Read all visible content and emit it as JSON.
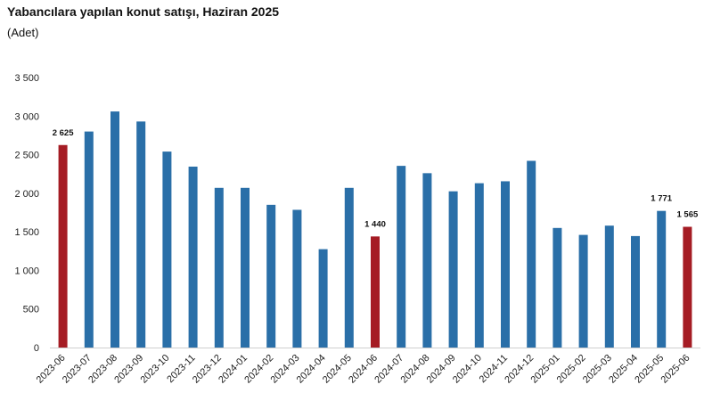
{
  "title": "Yabancılara yapılan konut satışı, Haziran 2025",
  "subtitle": "(Adet)",
  "colors": {
    "default_bar": "#2a6fa8",
    "highlight_bar": "#a51c24",
    "axis": "#cfcfcf"
  },
  "chart_data": {
    "type": "bar",
    "title": "Yabancılara yapılan konut satışı, Haziran 2025",
    "subtitle": "(Adet)",
    "xlabel": "",
    "ylabel": "",
    "ylim": [
      0,
      3500
    ],
    "yticks": [
      0,
      500,
      1000,
      1500,
      2000,
      2500,
      3000,
      3500
    ],
    "ytick_labels": [
      "0",
      "500",
      "1 000",
      "1 500",
      "2 000",
      "2 500",
      "3 000",
      "3 500"
    ],
    "grid": false,
    "categories": [
      "2023-06",
      "2023-07",
      "2023-08",
      "2023-09",
      "2023-10",
      "2023-11",
      "2023-12",
      "2024-01",
      "2024-02",
      "2024-03",
      "2024-04",
      "2024-05",
      "2024-06",
      "2024-07",
      "2024-08",
      "2024-09",
      "2024-10",
      "2024-11",
      "2024-12",
      "2025-01",
      "2025-02",
      "2025-03",
      "2025-04",
      "2025-05",
      "2025-06"
    ],
    "values": [
      2625,
      2800,
      3060,
      2930,
      2540,
      2345,
      2070,
      2070,
      1850,
      1785,
      1275,
      2070,
      1440,
      2355,
      2260,
      2025,
      2130,
      2155,
      2420,
      1550,
      1460,
      1580,
      1445,
      1771,
      1565
    ],
    "highlighted": [
      0,
      12,
      24
    ],
    "data_labels": [
      {
        "index": 0,
        "text": "2 625"
      },
      {
        "index": 12,
        "text": "1 440"
      },
      {
        "index": 23,
        "text": "1 771"
      },
      {
        "index": 24,
        "text": "1 565"
      }
    ]
  }
}
